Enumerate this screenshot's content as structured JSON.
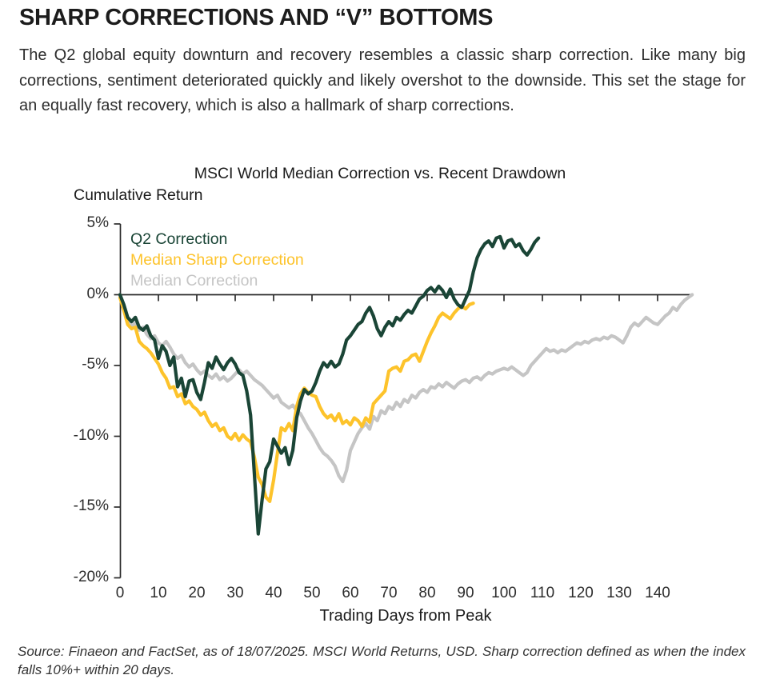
{
  "page": {
    "title": "SHARP CORRECTIONS AND “V” BOTTOMS",
    "intro": "The Q2 global equity downturn and recovery resembles a classic sharp correction. Like many big corrections, sentiment deteriorated quickly and likely overshot to the downside. This set the stage for an equally fast recovery, which is also a hallmark of sharp corrections.",
    "source_note": "Source: Finaeon and FactSet, as of 18/07/2025. MSCI World Returns, USD. Sharp correction defined as when the index falls 10%+ within 20 days."
  },
  "chart_data": {
    "type": "line",
    "title": "MSCI World Median Correction vs. Recent Drawdown",
    "ylabel": "Cumulative Return",
    "xlabel": "Trading Days from Peak",
    "x_ticks": [
      0,
      10,
      20,
      30,
      40,
      50,
      60,
      70,
      80,
      90,
      100,
      110,
      120,
      130,
      140
    ],
    "y_ticks": [
      5,
      0,
      -5,
      -10,
      -15,
      -20
    ],
    "y_tick_labels": [
      "5%",
      "0%",
      "-5%",
      "-10%",
      "-15%",
      "-20%"
    ],
    "xlim": [
      0,
      150
    ],
    "ylim": [
      -20,
      5
    ],
    "grid": false,
    "axis_at_zero": true,
    "legend_position": "top-left-inside",
    "axis_color": "#2b2b2b",
    "x_unit": "trading days from peak",
    "y_unit": "percent cumulative return",
    "series": [
      {
        "name": "Q2 Correction",
        "color": "#1a4536",
        "x_start": 0,
        "values": [
          0.0,
          -0.7,
          -1.6,
          -1.9,
          -1.6,
          -2.3,
          -2.5,
          -2.2,
          -2.9,
          -3.2,
          -4.5,
          -3.6,
          -4.0,
          -5.0,
          -4.4,
          -6.5,
          -5.9,
          -7.2,
          -6.1,
          -6.0,
          -6.9,
          -7.4,
          -6.2,
          -4.8,
          -5.2,
          -4.4,
          -4.9,
          -5.3,
          -4.8,
          -4.5,
          -4.9,
          -5.5,
          -5.7,
          -6.8,
          -8.5,
          -12.7,
          -16.9,
          -14.5,
          -12.3,
          -11.8,
          -10.2,
          -10.7,
          -11.2,
          -10.8,
          -12.0,
          -11.0,
          -8.7,
          -7.5,
          -6.7,
          -7.0,
          -6.8,
          -6.2,
          -5.4,
          -4.8,
          -5.1,
          -4.7,
          -5.1,
          -4.9,
          -4.2,
          -3.2,
          -2.9,
          -2.5,
          -2.1,
          -1.9,
          -1.3,
          -0.9,
          -1.5,
          -2.4,
          -2.9,
          -2.3,
          -1.9,
          -2.2,
          -1.6,
          -1.8,
          -1.4,
          -1.1,
          -1.3,
          -0.8,
          -0.3,
          -0.1,
          0.3,
          0.5,
          0.2,
          0.6,
          0.3,
          -0.2,
          0.4,
          -0.3,
          -0.7,
          -0.9,
          -0.3,
          0.3,
          1.6,
          2.6,
          3.2,
          3.6,
          3.8,
          3.4,
          4.0,
          4.1,
          3.3,
          3.8,
          3.9,
          3.4,
          3.6,
          3.1,
          2.8,
          3.2,
          3.7,
          4.0
        ]
      },
      {
        "name": "Median Sharp Correction",
        "color": "#fdc32b",
        "x_start": 0,
        "values": [
          -0.2,
          -1.1,
          -2.1,
          -2.4,
          -2.3,
          -3.3,
          -3.6,
          -3.8,
          -4.1,
          -4.5,
          -4.9,
          -5.5,
          -5.9,
          -6.6,
          -6.5,
          -7.2,
          -7.0,
          -7.7,
          -7.5,
          -7.9,
          -8.1,
          -8.5,
          -8.3,
          -8.9,
          -9.3,
          -9.1,
          -9.6,
          -9.4,
          -10.0,
          -10.2,
          -9.8,
          -10.3,
          -9.9,
          -10.2,
          -10.4,
          -11.5,
          -12.9,
          -13.4,
          -14.3,
          -14.6,
          -13.1,
          -11.2,
          -9.4,
          -9.6,
          -9.1,
          -9.6,
          -7.9,
          -7.0,
          -6.6,
          -6.9,
          -7.1,
          -7.2,
          -7.9,
          -8.4,
          -8.7,
          -8.5,
          -8.9,
          -8.4,
          -9.1,
          -8.9,
          -9.2,
          -8.7,
          -8.9,
          -9.3,
          -8.7,
          -9.0,
          -7.7,
          -7.4,
          -7.1,
          -6.8,
          -5.4,
          -5.2,
          -5.1,
          -5.4,
          -4.7,
          -4.6,
          -4.3,
          -4.2,
          -4.7,
          -4.0,
          -3.3,
          -2.7,
          -2.2,
          -1.6,
          -1.3,
          -1.5,
          -1.7,
          -1.3,
          -1.0,
          -0.8,
          -1.0,
          -0.7,
          -0.6
        ]
      },
      {
        "name": "Median Correction",
        "color": "#c5c5c5",
        "x_start": 0,
        "values": [
          0.0,
          -0.8,
          -1.7,
          -2.2,
          -2.0,
          -2.5,
          -2.3,
          -2.8,
          -3.1,
          -2.9,
          -3.4,
          -3.6,
          -3.3,
          -3.7,
          -4.2,
          -4.5,
          -4.3,
          -4.8,
          -5.1,
          -4.9,
          -5.3,
          -5.6,
          -5.4,
          -5.7,
          -5.9,
          -5.6,
          -6.0,
          -5.8,
          -6.1,
          -5.9,
          -5.6,
          -5.3,
          -5.6,
          -5.4,
          -5.7,
          -6.0,
          -6.2,
          -6.4,
          -6.7,
          -7.0,
          -7.3,
          -7.1,
          -7.6,
          -7.8,
          -8.0,
          -7.8,
          -8.2,
          -8.4,
          -8.9,
          -9.4,
          -9.8,
          -10.3,
          -10.8,
          -11.2,
          -11.4,
          -11.7,
          -12.1,
          -12.8,
          -13.2,
          -12.4,
          -11.0,
          -10.4,
          -9.8,
          -9.4,
          -9.1,
          -9.5,
          -8.6,
          -8.9,
          -8.2,
          -8.4,
          -7.9,
          -8.1,
          -7.6,
          -7.9,
          -7.4,
          -7.6,
          -7.1,
          -7.3,
          -6.9,
          -6.7,
          -6.9,
          -6.5,
          -6.6,
          -6.3,
          -6.5,
          -6.2,
          -6.4,
          -6.6,
          -6.3,
          -6.1,
          -6.0,
          -6.2,
          -5.9,
          -5.8,
          -6.0,
          -5.7,
          -5.5,
          -5.6,
          -5.4,
          -5.3,
          -5.2,
          -5.3,
          -5.1,
          -5.3,
          -5.5,
          -5.7,
          -5.5,
          -5.0,
          -4.7,
          -4.4,
          -4.1,
          -3.8,
          -4.0,
          -3.9,
          -4.1,
          -3.9,
          -4.0,
          -3.8,
          -3.6,
          -3.4,
          -3.5,
          -3.3,
          -3.4,
          -3.2,
          -3.1,
          -3.2,
          -3.0,
          -3.1,
          -2.9,
          -3.0,
          -3.2,
          -3.4,
          -2.9,
          -2.3,
          -2.0,
          -2.2,
          -1.9,
          -1.6,
          -1.8,
          -2.0,
          -2.1,
          -1.8,
          -1.5,
          -1.3,
          -0.9,
          -1.1,
          -0.7,
          -0.4,
          -0.2,
          0.0
        ]
      }
    ]
  }
}
